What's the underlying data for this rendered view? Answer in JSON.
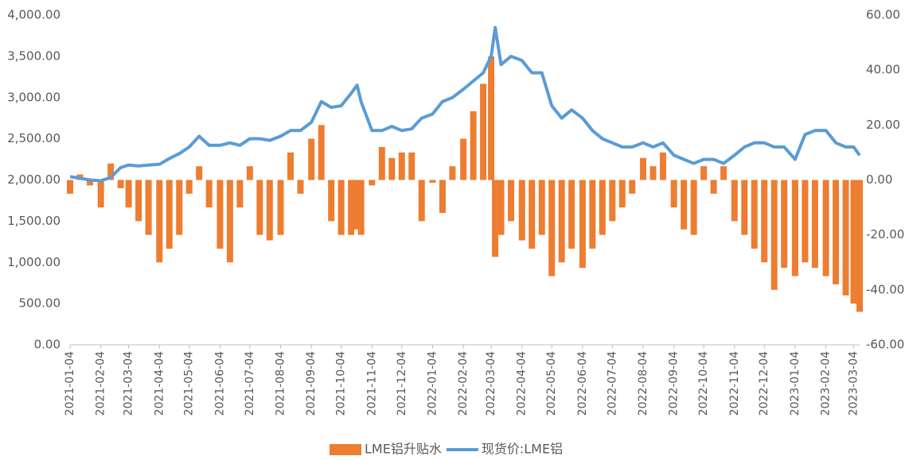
{
  "chart_data": {
    "type": "combo",
    "x": [
      "2021-01-04",
      "2021-01-14",
      "2021-01-24",
      "2021-02-04",
      "2021-02-14",
      "2021-02-24",
      "2021-03-04",
      "2021-03-14",
      "2021-03-24",
      "2021-04-04",
      "2021-04-14",
      "2021-04-24",
      "2021-05-04",
      "2021-05-14",
      "2021-05-24",
      "2021-06-04",
      "2021-06-14",
      "2021-06-24",
      "2021-07-04",
      "2021-07-14",
      "2021-07-24",
      "2021-08-04",
      "2021-08-14",
      "2021-08-24",
      "2021-09-04",
      "2021-09-14",
      "2021-09-24",
      "2021-10-04",
      "2021-10-14",
      "2021-10-20",
      "2021-10-24",
      "2021-11-04",
      "2021-11-14",
      "2021-11-24",
      "2021-12-04",
      "2021-12-14",
      "2021-12-24",
      "2022-01-04",
      "2022-01-14",
      "2022-01-24",
      "2022-02-04",
      "2022-02-14",
      "2022-02-24",
      "2022-03-04",
      "2022-03-08",
      "2022-03-14",
      "2022-03-24",
      "2022-04-04",
      "2022-04-14",
      "2022-04-24",
      "2022-05-04",
      "2022-05-14",
      "2022-05-24",
      "2022-06-04",
      "2022-06-14",
      "2022-06-24",
      "2022-07-04",
      "2022-07-14",
      "2022-07-24",
      "2022-08-04",
      "2022-08-14",
      "2022-08-24",
      "2022-09-04",
      "2022-09-14",
      "2022-09-24",
      "2022-10-04",
      "2022-10-14",
      "2022-10-24",
      "2022-11-04",
      "2022-11-14",
      "2022-11-24",
      "2022-12-04",
      "2022-12-14",
      "2022-12-24",
      "2023-01-04",
      "2023-01-14",
      "2023-01-24",
      "2023-02-04",
      "2023-02-14",
      "2023-02-24",
      "2023-03-04",
      "2023-03-10"
    ],
    "series": [
      {
        "name": "LME铝升贴水",
        "type": "bar",
        "axis": "y2",
        "color": "#ed7d31",
        "values": [
          -5,
          2,
          -2,
          -10,
          6,
          -3,
          -10,
          -15,
          -20,
          -30,
          -25,
          -20,
          -5,
          5,
          -10,
          -25,
          -30,
          -10,
          5,
          -20,
          -22,
          -20,
          10,
          -5,
          15,
          20,
          -15,
          -20,
          -20,
          -18,
          -20,
          -2,
          12,
          8,
          10,
          10,
          -15,
          -1,
          -12,
          5,
          15,
          25,
          35,
          45,
          -28,
          -20,
          -15,
          -22,
          -25,
          -20,
          -35,
          -30,
          -25,
          -32,
          -25,
          -20,
          -15,
          -10,
          -5,
          8,
          5,
          10,
          -10,
          -18,
          -20,
          5,
          -5,
          5,
          -15,
          -20,
          -25,
          -30,
          -40,
          -32,
          -35,
          -30,
          -32,
          -35,
          -38,
          -42,
          -45,
          -48
        ]
      },
      {
        "name": "现货价:LME铝",
        "type": "line",
        "axis": "y",
        "color": "#5b9bd5",
        "values": [
          2040,
          2020,
          2000,
          1990,
          2030,
          2150,
          2180,
          2170,
          2180,
          2190,
          2260,
          2320,
          2400,
          2530,
          2420,
          2420,
          2450,
          2420,
          2500,
          2500,
          2480,
          2530,
          2600,
          2600,
          2700,
          2950,
          2880,
          2900,
          3050,
          3150,
          2950,
          2600,
          2600,
          2650,
          2600,
          2620,
          2750,
          2800,
          2950,
          3000,
          3100,
          3200,
          3300,
          3500,
          3850,
          3400,
          3500,
          3450,
          3300,
          3300,
          2900,
          2750,
          2850,
          2750,
          2600,
          2500,
          2450,
          2400,
          2400,
          2450,
          2400,
          2450,
          2300,
          2250,
          2200,
          2250,
          2250,
          2200,
          2300,
          2400,
          2450,
          2450,
          2400,
          2400,
          2250,
          2550,
          2600,
          2600,
          2450,
          2400,
          2400,
          2300
        ]
      }
    ],
    "xlim": [
      "2021-01-04",
      "2023-03-10"
    ],
    "xticks": [
      "2021-01-04",
      "2021-02-04",
      "2021-03-04",
      "2021-04-04",
      "2021-05-04",
      "2021-06-04",
      "2021-07-04",
      "2021-08-04",
      "2021-09-04",
      "2021-10-04",
      "2021-11-04",
      "2021-12-04",
      "2022-01-04",
      "2022-02-04",
      "2022-03-04",
      "2022-04-04",
      "2022-05-04",
      "2022-06-04",
      "2022-07-04",
      "2022-08-04",
      "2022-09-04",
      "2022-10-04",
      "2022-11-04",
      "2022-12-04",
      "2023-01-04",
      "2023-02-04",
      "2023-03-04"
    ],
    "ylim": [
      0,
      4000
    ],
    "yticks": [
      {
        "value": 0,
        "label": "0.00"
      },
      {
        "value": 500,
        "label": "500.00"
      },
      {
        "value": 1000,
        "label": "1,000.00"
      },
      {
        "value": 1500,
        "label": "1,500.00"
      },
      {
        "value": 2000,
        "label": "2,000.00"
      },
      {
        "value": 2500,
        "label": "2,500.00"
      },
      {
        "value": 3000,
        "label": "3,000.00"
      },
      {
        "value": 3500,
        "label": "3,500.00"
      },
      {
        "value": 4000,
        "label": "4,000.00"
      }
    ],
    "y2lim": [
      -60,
      60
    ],
    "y2ticks": [
      {
        "value": -60,
        "label": "-60.00"
      },
      {
        "value": -40,
        "label": "-40.00"
      },
      {
        "value": -20,
        "label": "-20.00"
      },
      {
        "value": 0,
        "label": "0.00"
      },
      {
        "value": 20,
        "label": "20.00"
      },
      {
        "value": 40,
        "label": "40.00"
      },
      {
        "value": 60,
        "label": "60.00"
      }
    ],
    "grid": false,
    "legend": "bottom"
  }
}
